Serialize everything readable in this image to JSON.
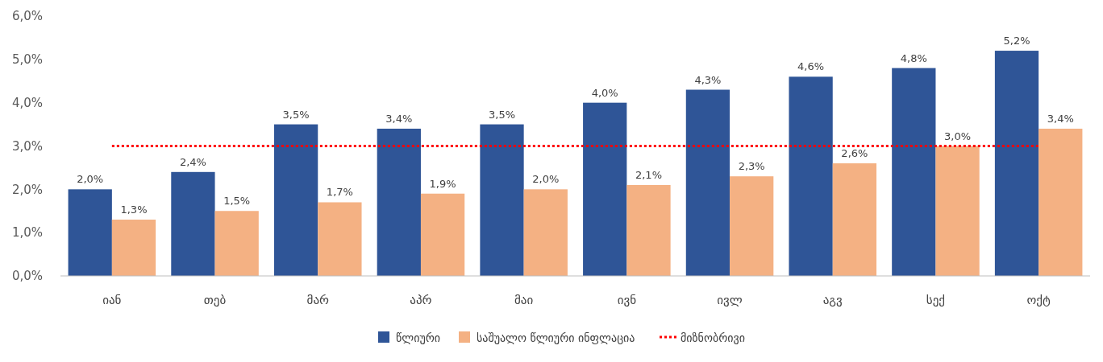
{
  "chart_data": {
    "type": "bar",
    "categories": [
      "იან",
      "თებ",
      "მარ",
      "აპრ",
      "მაი",
      "ივნ",
      "ივლ",
      "აგვ",
      "სექ",
      "ოქტ"
    ],
    "series": [
      {
        "name": "წლიური",
        "color": "#2f5597",
        "values": [
          2.0,
          2.4,
          3.5,
          3.4,
          3.5,
          4.0,
          4.3,
          4.6,
          4.8,
          5.2
        ],
        "value_labels": [
          "2,0%",
          "2,4%",
          "3,5%",
          "3,4%",
          "3,5%",
          "4,0%",
          "4,3%",
          "4,6%",
          "4,8%",
          "5,2%"
        ]
      },
      {
        "name": "საშუალო წლიური ინფლაცია",
        "color": "#f4b183",
        "values": [
          1.3,
          1.5,
          1.7,
          1.9,
          2.0,
          2.1,
          2.3,
          2.6,
          3.0,
          3.4
        ],
        "value_labels": [
          "1,3%",
          "1,5%",
          "1,7%",
          "1,9%",
          "2,0%",
          "2,1%",
          "2,3%",
          "2,6%",
          "3,0%",
          "3,4%"
        ]
      }
    ],
    "ref_lines": [
      {
        "axis": "y",
        "value": 3,
        "label": "მიზნობრივი",
        "color": "#ff0000",
        "line_style": "dotted"
      }
    ],
    "ylim": [
      0,
      6
    ],
    "yticks": [
      {
        "value": 0,
        "label": "0,0%"
      },
      {
        "value": 1,
        "label": "1,0%"
      },
      {
        "value": 2,
        "label": "2,0%"
      },
      {
        "value": 3,
        "label": "3,0%"
      },
      {
        "value": 4,
        "label": "4,0%"
      },
      {
        "value": 5,
        "label": "5,0%"
      },
      {
        "value": 6,
        "label": "6,0%"
      }
    ],
    "grid": false,
    "legend": "bottom"
  }
}
